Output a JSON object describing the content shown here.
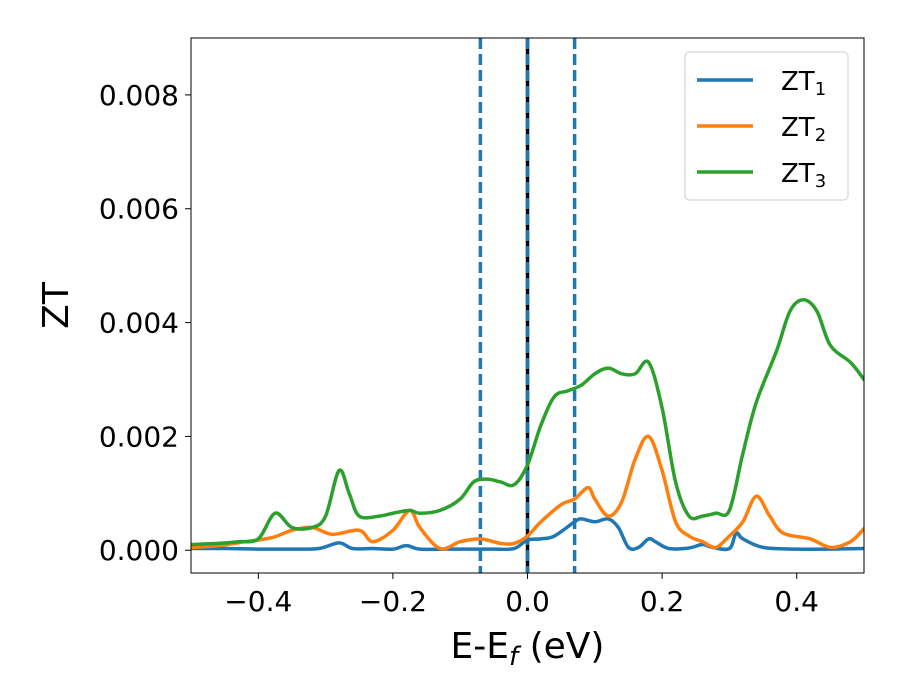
{
  "chart_data": {
    "type": "line",
    "title": "",
    "xlabel": {
      "main": "E-E",
      "sub": "f",
      "unit": " (eV)"
    },
    "ylabel": "ZT",
    "xlim": [
      -0.5,
      0.5
    ],
    "ylim": [
      -0.0004,
      0.009
    ],
    "x_ticks": [
      -0.4,
      -0.2,
      0.0,
      0.2,
      0.4
    ],
    "x_tick_labels": [
      "−0.4",
      "−0.2",
      "0.0",
      "0.2",
      "0.4"
    ],
    "y_ticks": [
      0.0,
      0.002,
      0.004,
      0.006,
      0.008
    ],
    "y_tick_labels": [
      "0.000",
      "0.002",
      "0.004",
      "0.006",
      "0.008"
    ],
    "grid": false,
    "legend_position": "top-right",
    "vertical_lines": [
      {
        "x": -0.07,
        "style": "dashed",
        "color": "#1f77b4"
      },
      {
        "x": 0.0,
        "style": "solid",
        "color": "#000000"
      },
      {
        "x": 0.0,
        "style": "dashed",
        "color": "#1f77b4"
      },
      {
        "x": 0.07,
        "style": "dashed",
        "color": "#1f77b4"
      }
    ],
    "series": [
      {
        "name": "ZT",
        "name_sub": "1",
        "color": "#1f77b4",
        "points": [
          [
            -0.5,
            3e-05
          ],
          [
            -0.45,
            3e-05
          ],
          [
            -0.4,
            2e-05
          ],
          [
            -0.35,
            2e-05
          ],
          [
            -0.31,
            3e-05
          ],
          [
            -0.28,
            0.00013
          ],
          [
            -0.26,
            3e-05
          ],
          [
            -0.23,
            3e-05
          ],
          [
            -0.2,
            2e-05
          ],
          [
            -0.18,
            8e-05
          ],
          [
            -0.16,
            2e-05
          ],
          [
            -0.12,
            2e-05
          ],
          [
            -0.08,
            2e-05
          ],
          [
            -0.05,
            2e-05
          ],
          [
            -0.02,
            3e-05
          ],
          [
            0.0,
            0.00018
          ],
          [
            0.02,
            0.0002
          ],
          [
            0.04,
            0.00025
          ],
          [
            0.07,
            0.0005
          ],
          [
            0.08,
            0.00055
          ],
          [
            0.1,
            0.0005
          ],
          [
            0.12,
            0.00055
          ],
          [
            0.135,
            0.0004
          ],
          [
            0.15,
            5e-05
          ],
          [
            0.165,
            5e-05
          ],
          [
            0.18,
            0.0002
          ],
          [
            0.19,
            0.00015
          ],
          [
            0.21,
            3e-05
          ],
          [
            0.24,
            4e-05
          ],
          [
            0.26,
            0.0001
          ],
          [
            0.275,
            5e-05
          ],
          [
            0.3,
            3e-05
          ],
          [
            0.31,
            0.0003
          ],
          [
            0.32,
            0.0002
          ],
          [
            0.35,
            5e-05
          ],
          [
            0.4,
            2e-05
          ],
          [
            0.45,
            2e-05
          ],
          [
            0.5,
            3e-05
          ]
        ]
      },
      {
        "name": "ZT",
        "name_sub": "2",
        "color": "#ff7f0e",
        "points": [
          [
            -0.5,
            5e-05
          ],
          [
            -0.46,
            8e-05
          ],
          [
            -0.42,
            0.00015
          ],
          [
            -0.38,
            0.00022
          ],
          [
            -0.35,
            0.00035
          ],
          [
            -0.32,
            0.0004
          ],
          [
            -0.29,
            0.00028
          ],
          [
            -0.25,
            0.00035
          ],
          [
            -0.23,
            0.00015
          ],
          [
            -0.2,
            0.00035
          ],
          [
            -0.175,
            0.0007
          ],
          [
            -0.16,
            0.0004
          ],
          [
            -0.13,
            3e-05
          ],
          [
            -0.1,
            0.00015
          ],
          [
            -0.07,
            0.0002
          ],
          [
            -0.04,
            0.00012
          ],
          [
            -0.02,
            0.00012
          ],
          [
            0.0,
            0.00025
          ],
          [
            0.02,
            0.0005
          ],
          [
            0.05,
            0.0008
          ],
          [
            0.07,
            0.0009
          ],
          [
            0.09,
            0.0011
          ],
          [
            0.1,
            0.0009
          ],
          [
            0.12,
            0.0006
          ],
          [
            0.14,
            0.00085
          ],
          [
            0.16,
            0.0016
          ],
          [
            0.18,
            0.002
          ],
          [
            0.2,
            0.0014
          ],
          [
            0.22,
            0.0005
          ],
          [
            0.24,
            0.00025
          ],
          [
            0.26,
            0.00015
          ],
          [
            0.28,
            5e-05
          ],
          [
            0.3,
            0.00025
          ],
          [
            0.32,
            0.0005
          ],
          [
            0.34,
            0.00095
          ],
          [
            0.36,
            0.0006
          ],
          [
            0.38,
            0.0003
          ],
          [
            0.42,
            0.0002
          ],
          [
            0.45,
            5e-05
          ],
          [
            0.48,
            0.00015
          ],
          [
            0.5,
            0.00038
          ]
        ]
      },
      {
        "name": "ZT",
        "name_sub": "3",
        "color": "#2ca02c",
        "points": [
          [
            -0.5,
            0.0001
          ],
          [
            -0.46,
            0.00012
          ],
          [
            -0.43,
            0.00015
          ],
          [
            -0.4,
            0.0002
          ],
          [
            -0.375,
            0.00065
          ],
          [
            -0.35,
            0.0004
          ],
          [
            -0.32,
            0.0004
          ],
          [
            -0.3,
            0.0006
          ],
          [
            -0.28,
            0.0014
          ],
          [
            -0.265,
            0.001
          ],
          [
            -0.25,
            0.0006
          ],
          [
            -0.22,
            0.0006
          ],
          [
            -0.2,
            0.00065
          ],
          [
            -0.175,
            0.0007
          ],
          [
            -0.16,
            0.00065
          ],
          [
            -0.13,
            0.0007
          ],
          [
            -0.1,
            0.0009
          ],
          [
            -0.08,
            0.0012
          ],
          [
            -0.06,
            0.00125
          ],
          [
            -0.04,
            0.0012
          ],
          [
            -0.02,
            0.00115
          ],
          [
            0.0,
            0.0015
          ],
          [
            0.02,
            0.0022
          ],
          [
            0.04,
            0.0027
          ],
          [
            0.06,
            0.0028
          ],
          [
            0.08,
            0.0029
          ],
          [
            0.1,
            0.0031
          ],
          [
            0.12,
            0.0032
          ],
          [
            0.14,
            0.0031
          ],
          [
            0.16,
            0.0031
          ],
          [
            0.18,
            0.0033
          ],
          [
            0.2,
            0.0025
          ],
          [
            0.22,
            0.0012
          ],
          [
            0.24,
            0.0006
          ],
          [
            0.26,
            0.0006
          ],
          [
            0.28,
            0.00065
          ],
          [
            0.3,
            0.0007
          ],
          [
            0.32,
            0.0017
          ],
          [
            0.34,
            0.0026
          ],
          [
            0.37,
            0.0035
          ],
          [
            0.39,
            0.0042
          ],
          [
            0.41,
            0.0044
          ],
          [
            0.43,
            0.0042
          ],
          [
            0.45,
            0.0036
          ],
          [
            0.48,
            0.0033
          ],
          [
            0.5,
            0.003
          ]
        ]
      }
    ]
  }
}
